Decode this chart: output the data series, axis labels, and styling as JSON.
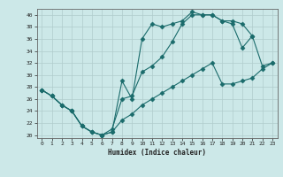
{
  "xlabel": "Humidex (Indice chaleur)",
  "ylabel": "",
  "xlim": [
    -0.5,
    23.5
  ],
  "ylim": [
    19.5,
    41
  ],
  "yticks": [
    20,
    22,
    24,
    26,
    28,
    30,
    32,
    34,
    36,
    38,
    40
  ],
  "xticks": [
    0,
    1,
    2,
    3,
    4,
    5,
    6,
    7,
    8,
    9,
    10,
    11,
    12,
    13,
    14,
    15,
    16,
    17,
    18,
    19,
    20,
    21,
    22,
    23
  ],
  "bg_color": "#cce8e8",
  "line_color": "#1a6b6b",
  "grid_color": "#b0cccc",
  "lines": [
    {
      "x": [
        0,
        1,
        2,
        3,
        4,
        5,
        6,
        7,
        8,
        9,
        10,
        11,
        12,
        13,
        14,
        15,
        16,
        17,
        18,
        19,
        20,
        21
      ],
      "y": [
        27.5,
        26.5,
        25.0,
        24.0,
        21.5,
        20.5,
        20.0,
        20.5,
        29.0,
        26.0,
        36.0,
        38.5,
        38.0,
        38.5,
        39.0,
        40.5,
        40.0,
        40.0,
        39.0,
        38.5,
        34.5,
        36.5
      ],
      "marker": "D",
      "markersize": 2.5
    },
    {
      "x": [
        0,
        1,
        2,
        3,
        4,
        5,
        6,
        7,
        8,
        9,
        10,
        11,
        12,
        13,
        14,
        15,
        16,
        17,
        18,
        19,
        20,
        21,
        22,
        23
      ],
      "y": [
        27.5,
        26.5,
        25.0,
        24.0,
        21.5,
        20.5,
        20.0,
        21.0,
        26.0,
        26.5,
        30.5,
        31.5,
        33.0,
        35.5,
        38.5,
        40.0,
        40.0,
        40.0,
        39.0,
        39.0,
        38.5,
        36.5,
        31.5,
        32.0
      ],
      "marker": "D",
      "markersize": 2.5
    },
    {
      "x": [
        0,
        1,
        2,
        3,
        4,
        5,
        6,
        7,
        8,
        9,
        10,
        11,
        12,
        13,
        14,
        15,
        16,
        17,
        18,
        19,
        20,
        21,
        22,
        23
      ],
      "y": [
        27.5,
        26.5,
        25.0,
        24.0,
        21.5,
        20.5,
        20.0,
        20.5,
        22.5,
        23.5,
        25.0,
        26.0,
        27.0,
        28.0,
        29.0,
        30.0,
        31.0,
        32.0,
        28.5,
        28.5,
        29.0,
        29.5,
        31.0,
        32.0
      ],
      "marker": "D",
      "markersize": 2.5
    }
  ]
}
